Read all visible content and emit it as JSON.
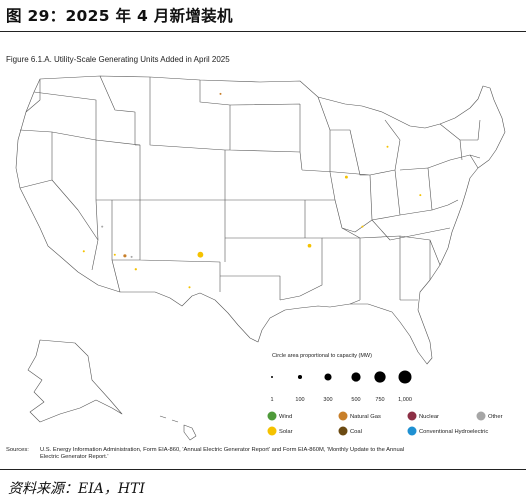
{
  "figure_title": "图 29：2025 年 4 月新增装机",
  "chart_title": "Figure 6.1.A. Utility-Scale Generating Units Added in April 2025",
  "colors": {
    "wind": "#4e9a3a",
    "natural_gas": "#c87f2a",
    "nuclear": "#8c2f45",
    "other": "#a6a6a6",
    "solar": "#f5c200",
    "coal": "#6b4a12",
    "hydro": "#1e90d2",
    "state_border": "#555555",
    "land": "#ffffff"
  },
  "size_legend": {
    "title": "Circle area proportional to capacity (MW)",
    "values": [
      1,
      100,
      300,
      500,
      750,
      1000
    ],
    "labels": [
      "1",
      "100",
      "300",
      "500",
      "750",
      "1,000"
    ]
  },
  "type_legend": [
    {
      "key": "wind",
      "label": "Wind",
      "icon": "wind-dot"
    },
    {
      "key": "natural_gas",
      "label": "Natural Gas",
      "icon": "natural-gas-dot"
    },
    {
      "key": "nuclear",
      "label": "Nuclear",
      "icon": "nuclear-dot"
    },
    {
      "key": "other",
      "label": "Other",
      "icon": "other-dot"
    },
    {
      "key": "solar",
      "label": "Solar",
      "icon": "solar-dot"
    },
    {
      "key": "coal",
      "label": "Coal",
      "icon": "coal-dot"
    },
    {
      "key": "hydro",
      "label": "Conventional Hydroelectric",
      "icon": "hydro-dot"
    }
  ],
  "sources_label": "Sources:",
  "sources_text": "U.S. Energy Information Administration, Form EIA-860, 'Annual Electric Generator Report' and Form EIA-860M, 'Monthly Update to the Annual Electric Generator Report.'",
  "source_note": "资料来源：EIA，HTI",
  "units": [
    {
      "type": "solar",
      "lon": -117.1,
      "lat": 33.9,
      "mw": 25
    },
    {
      "type": "other",
      "lon": -114.9,
      "lat": 36.1,
      "mw": 10
    },
    {
      "type": "solar",
      "lon": -113.4,
      "lat": 33.6,
      "mw": 10
    },
    {
      "type": "natural_gas",
      "lon": -112.2,
      "lat": 33.5,
      "mw": 60
    },
    {
      "type": "other",
      "lon": -111.4,
      "lat": 33.4,
      "mw": 15
    },
    {
      "type": "solar",
      "lon": -110.9,
      "lat": 32.3,
      "mw": 30
    },
    {
      "type": "solar",
      "lon": -103.2,
      "lat": 33.6,
      "mw": 200
    },
    {
      "type": "solar",
      "lon": -104.5,
      "lat": 30.7,
      "mw": 25
    },
    {
      "type": "natural_gas",
      "lon": -100.8,
      "lat": 47.9,
      "mw": 10
    },
    {
      "type": "solar",
      "lon": -90.2,
      "lat": 34.4,
      "mw": 80
    },
    {
      "type": "solar",
      "lon": -85.8,
      "lat": 40.5,
      "mw": 50
    },
    {
      "type": "solar",
      "lon": -80.9,
      "lat": 43.2,
      "mw": 3
    },
    {
      "type": "solar",
      "lon": -77.0,
      "lat": 38.9,
      "mw": 3
    },
    {
      "type": "solar",
      "lon": -83.9,
      "lat": 36.1,
      "mw": 3
    }
  ]
}
